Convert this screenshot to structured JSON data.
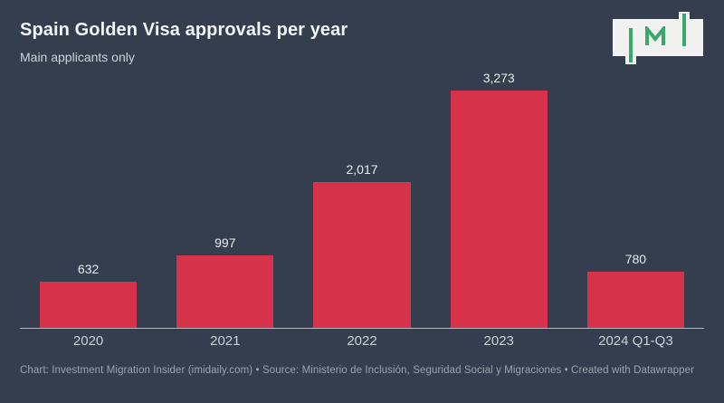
{
  "header": {
    "title": "Spain Golden Visa approvals per year",
    "subtitle": "Main applicants only"
  },
  "logo": {
    "text": "IMI"
  },
  "chart_data": {
    "type": "bar",
    "categories": [
      "2020",
      "2021",
      "2022",
      "2023",
      "2024 Q1-Q3"
    ],
    "values": [
      632,
      997,
      2017,
      3273,
      780
    ],
    "value_labels": [
      "632",
      "997",
      "2,017",
      "3,273",
      "780"
    ],
    "title": "Spain Golden Visa approvals per year",
    "subtitle": "Main applicants only",
    "xlabel": "",
    "ylabel": "",
    "ylim": [
      0,
      3273
    ],
    "grid": false,
    "legend": false,
    "bar_color": "#d6334a"
  },
  "theme": {
    "background": "#343e4e",
    "bar_color": "#d6334a",
    "logo_green": "#3aa76d",
    "logo_plate": "#f1f1ef",
    "axis_line": "#b0b5bc"
  },
  "footer": {
    "text": "Chart: Investment Migration Insider (imidaily.com) • Source: Ministerio de Inclusión, Seguridad Social y Migraciones • Created with Datawrapper"
  }
}
